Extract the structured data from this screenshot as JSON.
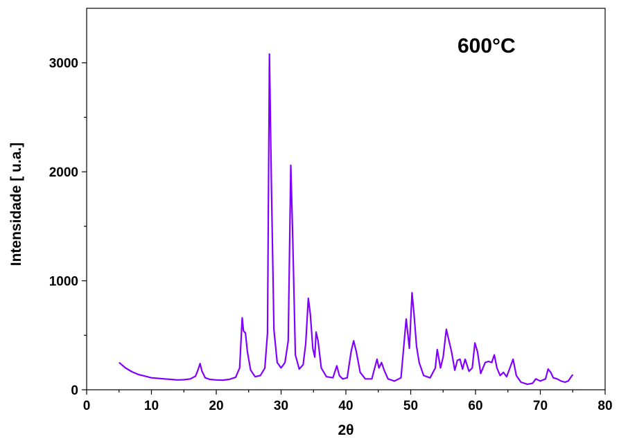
{
  "chart_data": {
    "type": "line",
    "title": "",
    "xlabel": "2θ",
    "ylabel": "Intensidade [ u.a.]",
    "annotation": "600°C",
    "xlim": [
      0,
      80
    ],
    "ylim": [
      0,
      3500
    ],
    "x_ticks": [
      0,
      10,
      20,
      30,
      40,
      50,
      60,
      70,
      80
    ],
    "y_ticks": [
      0,
      1000,
      2000,
      3000
    ],
    "x_tick_labels": [
      "0",
      "10",
      "20",
      "30",
      "40",
      "50",
      "60",
      "70",
      "80"
    ],
    "y_tick_labels": [
      "0",
      "1000",
      "2000",
      "3000"
    ],
    "grid": false,
    "legend": "none",
    "line_color": "#8000ff",
    "series": [
      {
        "x": [
          5,
          5.5,
          6,
          7,
          8,
          9,
          10,
          11,
          12,
          13,
          14,
          15,
          16,
          16.8,
          17.2,
          17.5,
          17.8,
          18.3,
          19,
          20,
          21,
          22,
          23,
          23.6,
          24,
          24.2,
          24.5,
          24.8,
          25.3,
          26,
          26.8,
          27.5,
          27.9,
          28.2,
          28.5,
          28.9,
          29.4,
          30,
          30.6,
          31.1,
          31.5,
          31.8,
          32.2,
          32.8,
          33.4,
          33.8,
          34.2,
          34.5,
          34.9,
          35.2,
          35.4,
          35.7,
          36.2,
          37,
          38,
          38.6,
          39,
          39.5,
          40.2,
          40.8,
          41.2,
          41.6,
          42.2,
          43,
          44,
          44.8,
          45.1,
          45.5,
          45.9,
          46.5,
          47.5,
          48.5,
          49.3,
          49.8,
          50.2,
          50.5,
          50.9,
          51.3,
          52,
          53,
          53.8,
          54.1,
          54.6,
          55,
          55.5,
          55.9,
          56.3,
          56.8,
          57.2,
          57.6,
          58,
          58.4,
          59,
          59.5,
          59.9,
          60.3,
          60.8,
          61.5,
          62,
          62.5,
          62.9,
          63.3,
          63.8,
          64.3,
          64.8,
          65.3,
          65.8,
          66.3,
          67,
          68,
          68.8,
          69.3,
          70,
          70.8,
          71.2,
          71.6,
          72,
          72.6,
          73.2,
          73.8,
          74.3,
          75
        ],
        "y": [
          250,
          225,
          200,
          165,
          140,
          125,
          110,
          105,
          100,
          95,
          90,
          92,
          100,
          125,
          185,
          240,
          170,
          110,
          95,
          90,
          88,
          95,
          115,
          200,
          660,
          540,
          520,
          350,
          180,
          120,
          130,
          200,
          520,
          3080,
          1900,
          550,
          250,
          200,
          250,
          450,
          2060,
          1400,
          320,
          190,
          230,
          420,
          840,
          700,
          380,
          300,
          530,
          450,
          200,
          120,
          110,
          220,
          130,
          100,
          110,
          350,
          450,
          350,
          160,
          100,
          100,
          280,
          200,
          250,
          180,
          100,
          80,
          110,
          650,
          380,
          890,
          700,
          400,
          250,
          130,
          110,
          200,
          370,
          200,
          300,
          555,
          450,
          350,
          180,
          270,
          280,
          190,
          280,
          170,
          200,
          430,
          350,
          150,
          250,
          260,
          250,
          320,
          200,
          130,
          160,
          120,
          200,
          280,
          130,
          70,
          50,
          60,
          100,
          80,
          100,
          190,
          160,
          110,
          100,
          80,
          70,
          80,
          140
        ]
      }
    ]
  }
}
